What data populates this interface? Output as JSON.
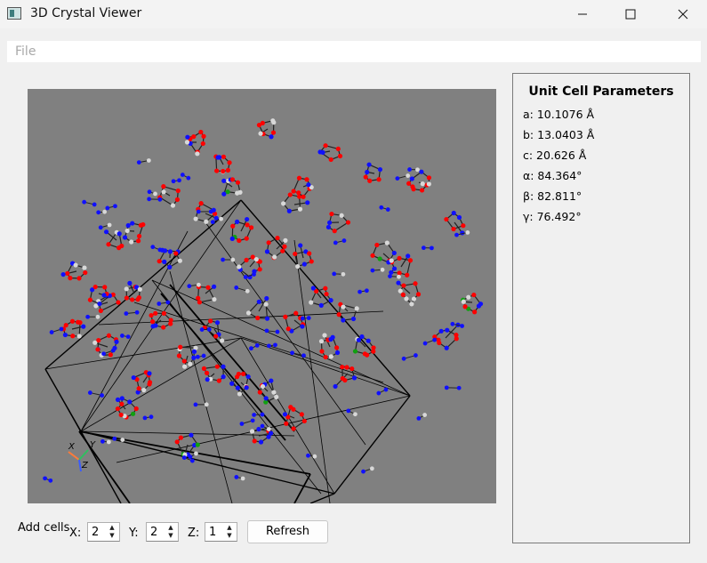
{
  "window": {
    "title": "3D Crystal Viewer",
    "controls": [
      "minimize-icon",
      "maximize-icon",
      "close-icon"
    ]
  },
  "menu": {
    "file_label": "File"
  },
  "viewer": {
    "axis_labels": {
      "x": "X",
      "y": "Y",
      "z": "Z"
    },
    "atom_colors": {
      "oxygen": "#ff0000",
      "nitrogen": "#1010ff",
      "carbon": "#d8d8d8",
      "other": "#10a010",
      "background": "#808080"
    }
  },
  "unit_cell": {
    "title": "Unit Cell Parameters",
    "a": "a: 10.1076 Å",
    "b": "b: 13.0403 Å",
    "c": "c: 20.626 Å",
    "alpha": "α: 84.364°",
    "beta": "β: 82.811°",
    "gamma": "γ: 76.492°"
  },
  "controls": {
    "add_cells_label": "Add cells",
    "x_label": "X:",
    "x_value": "2",
    "y_label": "Y:",
    "y_value": "2",
    "z_label": "Z:",
    "z_value": "1",
    "refresh_label": "Refresh"
  }
}
